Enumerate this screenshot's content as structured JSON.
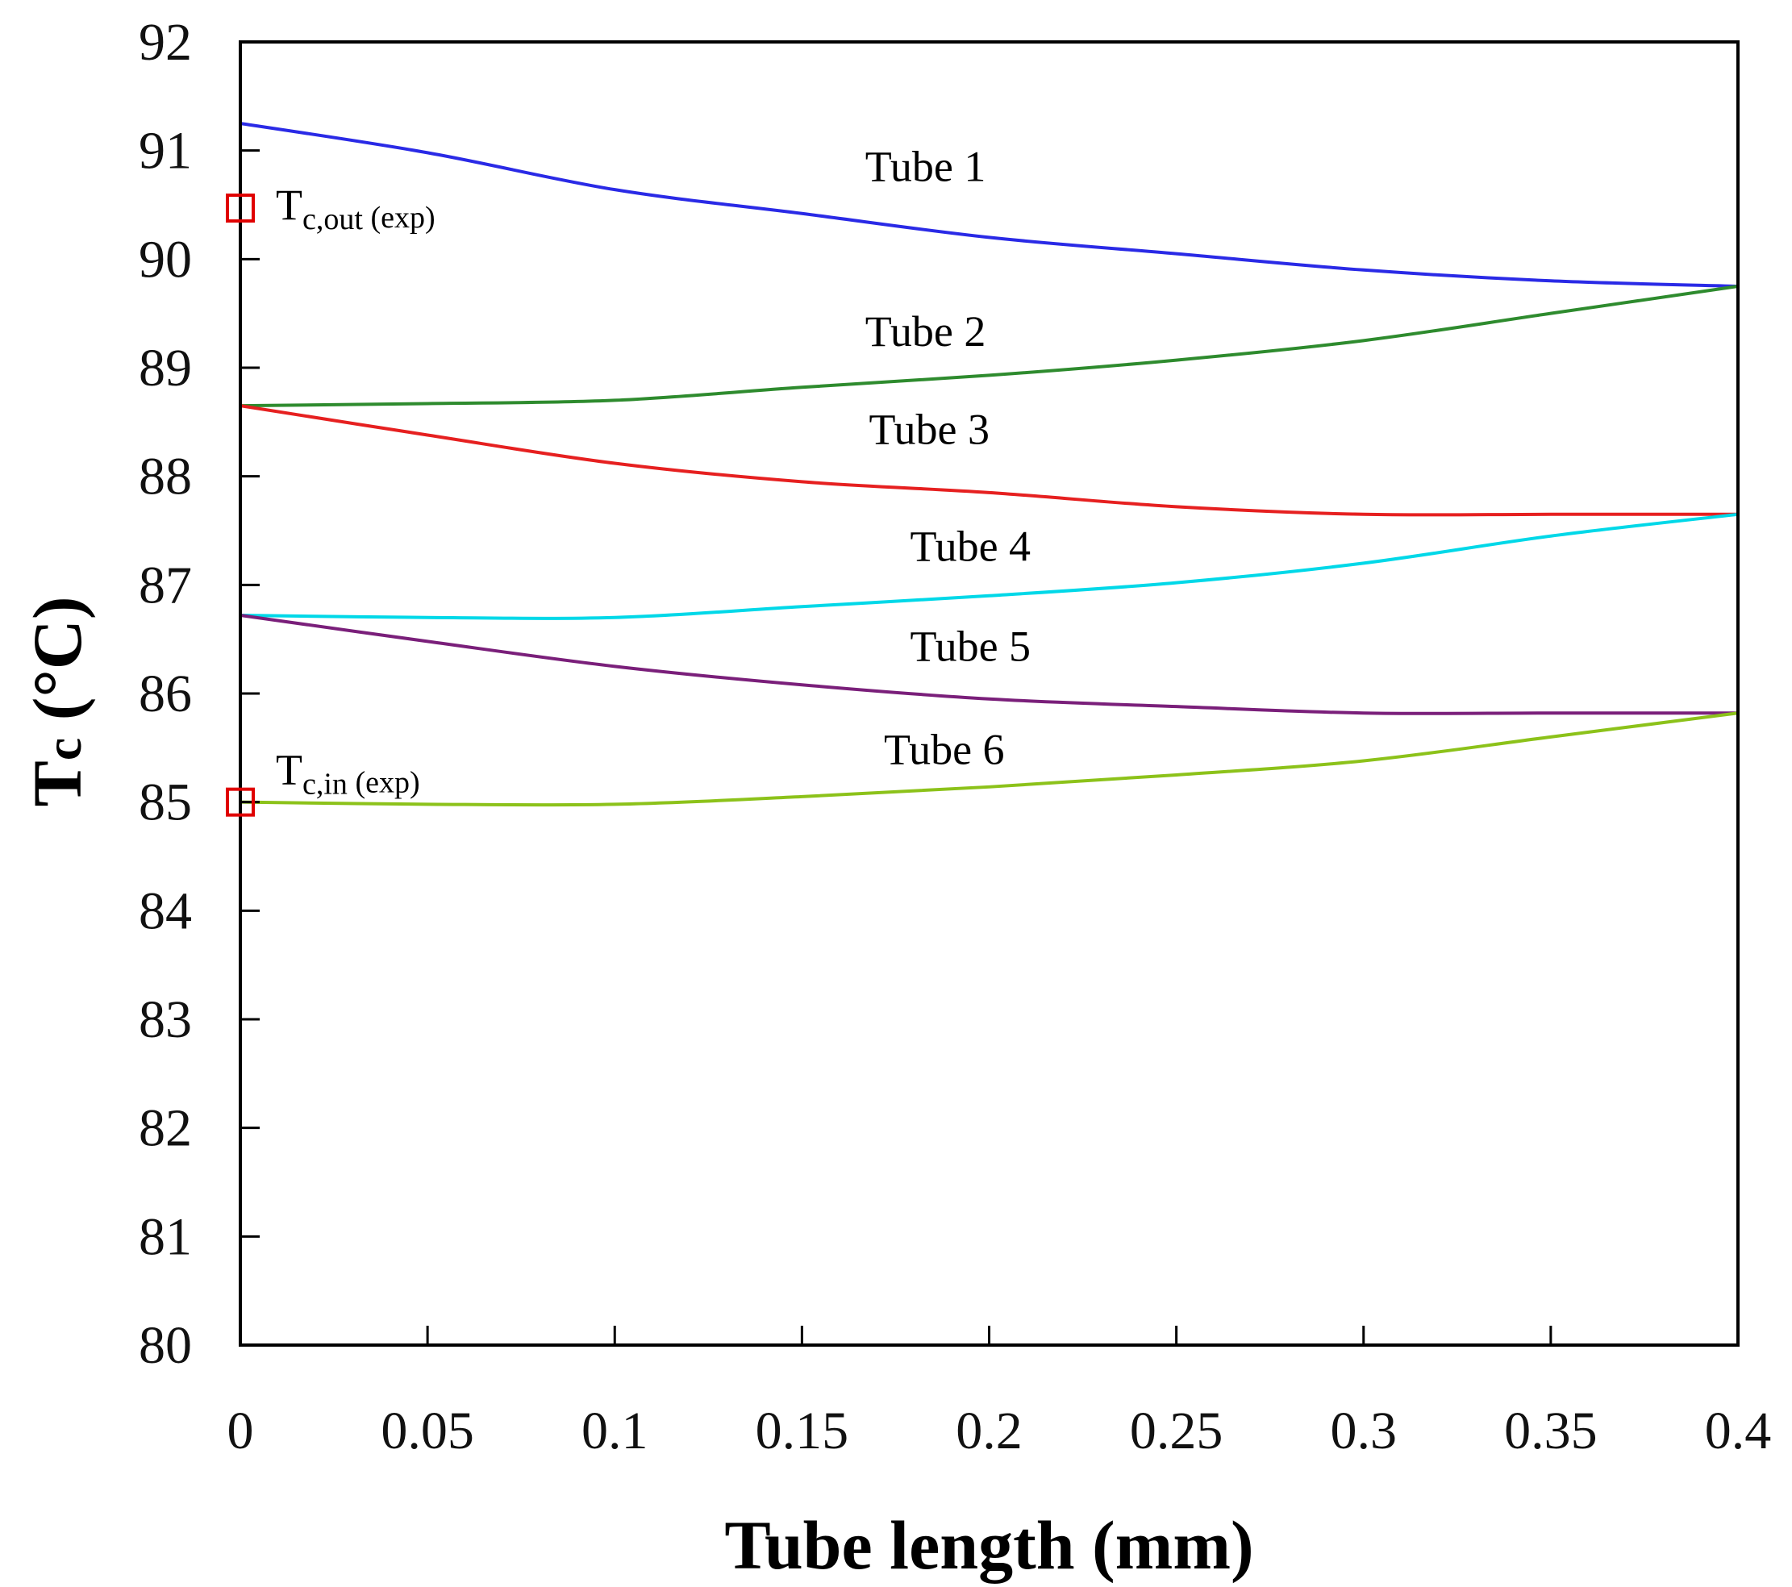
{
  "chart_data": {
    "type": "line",
    "title": "",
    "xlabel": "Tube length (mm)",
    "ylabel_main": "T",
    "ylabel_sub": "c",
    "ylabel_unit": " (°C)",
    "xlim": [
      0,
      0.4
    ],
    "ylim": [
      80,
      92
    ],
    "x_ticks": [
      "0",
      "0.05",
      "0.1",
      "0.15",
      "0.2",
      "0.25",
      "0.3",
      "0.35",
      "0.4"
    ],
    "y_ticks": [
      "80",
      "81",
      "82",
      "83",
      "84",
      "85",
      "86",
      "87",
      "88",
      "89",
      "90",
      "91",
      "92"
    ],
    "grid": false,
    "series": [
      {
        "name": "Tube 1",
        "color": "#2a2ae6",
        "x": [
          0,
          0.05,
          0.1,
          0.15,
          0.2,
          0.25,
          0.3,
          0.35,
          0.4
        ],
        "y": [
          91.25,
          90.98,
          90.64,
          90.42,
          90.2,
          90.05,
          89.9,
          89.8,
          89.75
        ]
      },
      {
        "name": "Tube 2",
        "color": "#2e8b2e",
        "x": [
          0,
          0.05,
          0.1,
          0.15,
          0.2,
          0.25,
          0.3,
          0.35,
          0.4
        ],
        "y": [
          88.65,
          88.67,
          88.7,
          88.82,
          88.93,
          89.07,
          89.25,
          89.5,
          89.75
        ]
      },
      {
        "name": "Tube 3",
        "color": "#e62020",
        "x": [
          0,
          0.05,
          0.1,
          0.15,
          0.2,
          0.25,
          0.3,
          0.35,
          0.4
        ],
        "y": [
          88.65,
          88.38,
          88.12,
          87.95,
          87.85,
          87.72,
          87.65,
          87.65,
          87.65
        ]
      },
      {
        "name": "Tube 4",
        "color": "#00d8e8",
        "x": [
          0,
          0.05,
          0.1,
          0.15,
          0.2,
          0.25,
          0.3,
          0.35,
          0.4
        ],
        "y": [
          86.72,
          86.7,
          86.7,
          86.8,
          86.9,
          87.02,
          87.2,
          87.45,
          87.65
        ]
      },
      {
        "name": "Tube 5",
        "color": "#7a1f7a",
        "x": [
          0,
          0.05,
          0.1,
          0.15,
          0.2,
          0.25,
          0.3,
          0.35,
          0.4
        ],
        "y": [
          86.72,
          86.48,
          86.25,
          86.08,
          85.95,
          85.88,
          85.82,
          85.82,
          85.82
        ]
      },
      {
        "name": "Tube 6",
        "color": "#8cc21a",
        "x": [
          0,
          0.05,
          0.1,
          0.15,
          0.2,
          0.25,
          0.3,
          0.35,
          0.4
        ],
        "y": [
          85.0,
          84.98,
          84.98,
          85.05,
          85.14,
          85.25,
          85.38,
          85.6,
          85.82
        ]
      }
    ],
    "series_label_positions": [
      {
        "name": "Tube 1",
        "x": 0.183,
        "y": 90.72
      },
      {
        "name": "Tube 2",
        "x": 0.183,
        "y": 89.2
      },
      {
        "name": "Tube 3",
        "x": 0.184,
        "y": 88.3
      },
      {
        "name": "Tube 4",
        "x": 0.195,
        "y": 87.22
      },
      {
        "name": "Tube 5",
        "x": 0.195,
        "y": 86.3
      },
      {
        "name": "Tube 6",
        "x": 0.188,
        "y": 85.35
      }
    ],
    "experimental_points": [
      {
        "x": 0,
        "y": 90.47,
        "label_main": "T",
        "label_sub": "c,out",
        "label_suffix": " (exp)",
        "color": "#e00000"
      },
      {
        "x": 0,
        "y": 85.0,
        "label_main": "T",
        "label_sub": "c,in",
        "label_suffix": " (exp)",
        "color": "#e00000"
      }
    ]
  }
}
